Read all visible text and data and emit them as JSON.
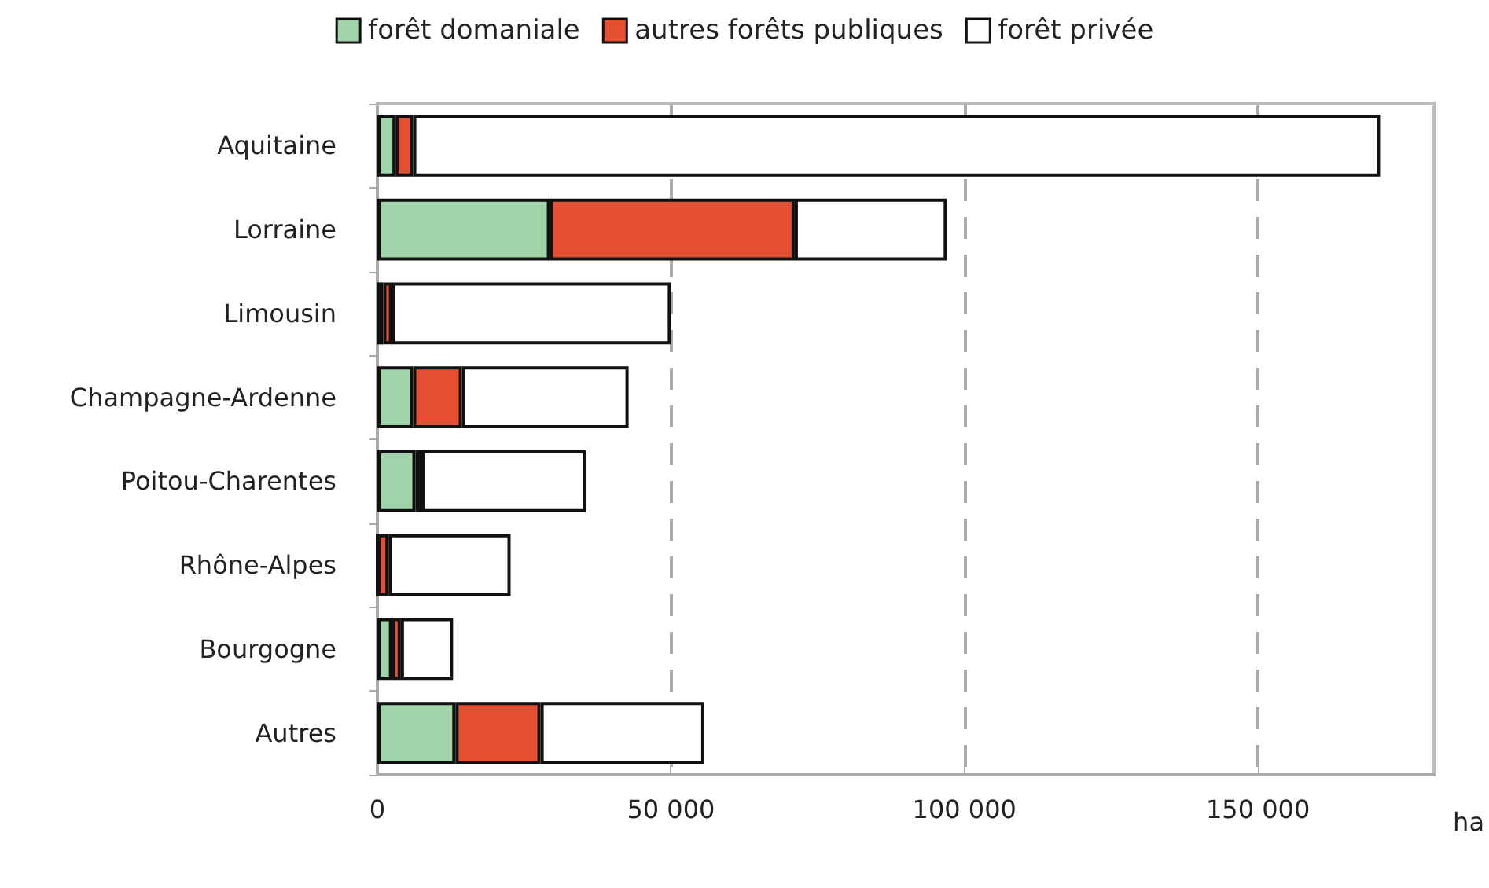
{
  "chart_data": {
    "type": "bar",
    "orientation": "horizontal",
    "stacked": true,
    "categories": [
      "Aquitaine",
      "Lorraine",
      "Limousin",
      "Champagne-Ardenne",
      "Poitou-Charentes",
      "Rhône-Alpes",
      "Bourgogne",
      "Autres"
    ],
    "series": [
      {
        "name": "forêt domaniale",
        "color": "#a0d3aa",
        "values": [
          3100,
          29400,
          1000,
          6100,
          6500,
          0,
          2500,
          13300
        ]
      },
      {
        "name": "autres forêts publiques",
        "color": "#e44f32",
        "values": [
          3000,
          41700,
          1500,
          8300,
          1000,
          1900,
          1500,
          14500
        ]
      },
      {
        "name": "forêt privée",
        "color": "#ffffff",
        "values": [
          164700,
          25900,
          47500,
          28400,
          28000,
          20800,
          8900,
          27900
        ]
      }
    ],
    "xlabel": "ha",
    "xlim": [
      0,
      180000
    ],
    "xticks": [
      0,
      {
        "value": 50000,
        "label": "50 000"
      },
      {
        "value": 100000,
        "label": "100 000"
      },
      {
        "value": 150000,
        "label": "150 000"
      }
    ],
    "grid": "x",
    "legend": "top"
  }
}
